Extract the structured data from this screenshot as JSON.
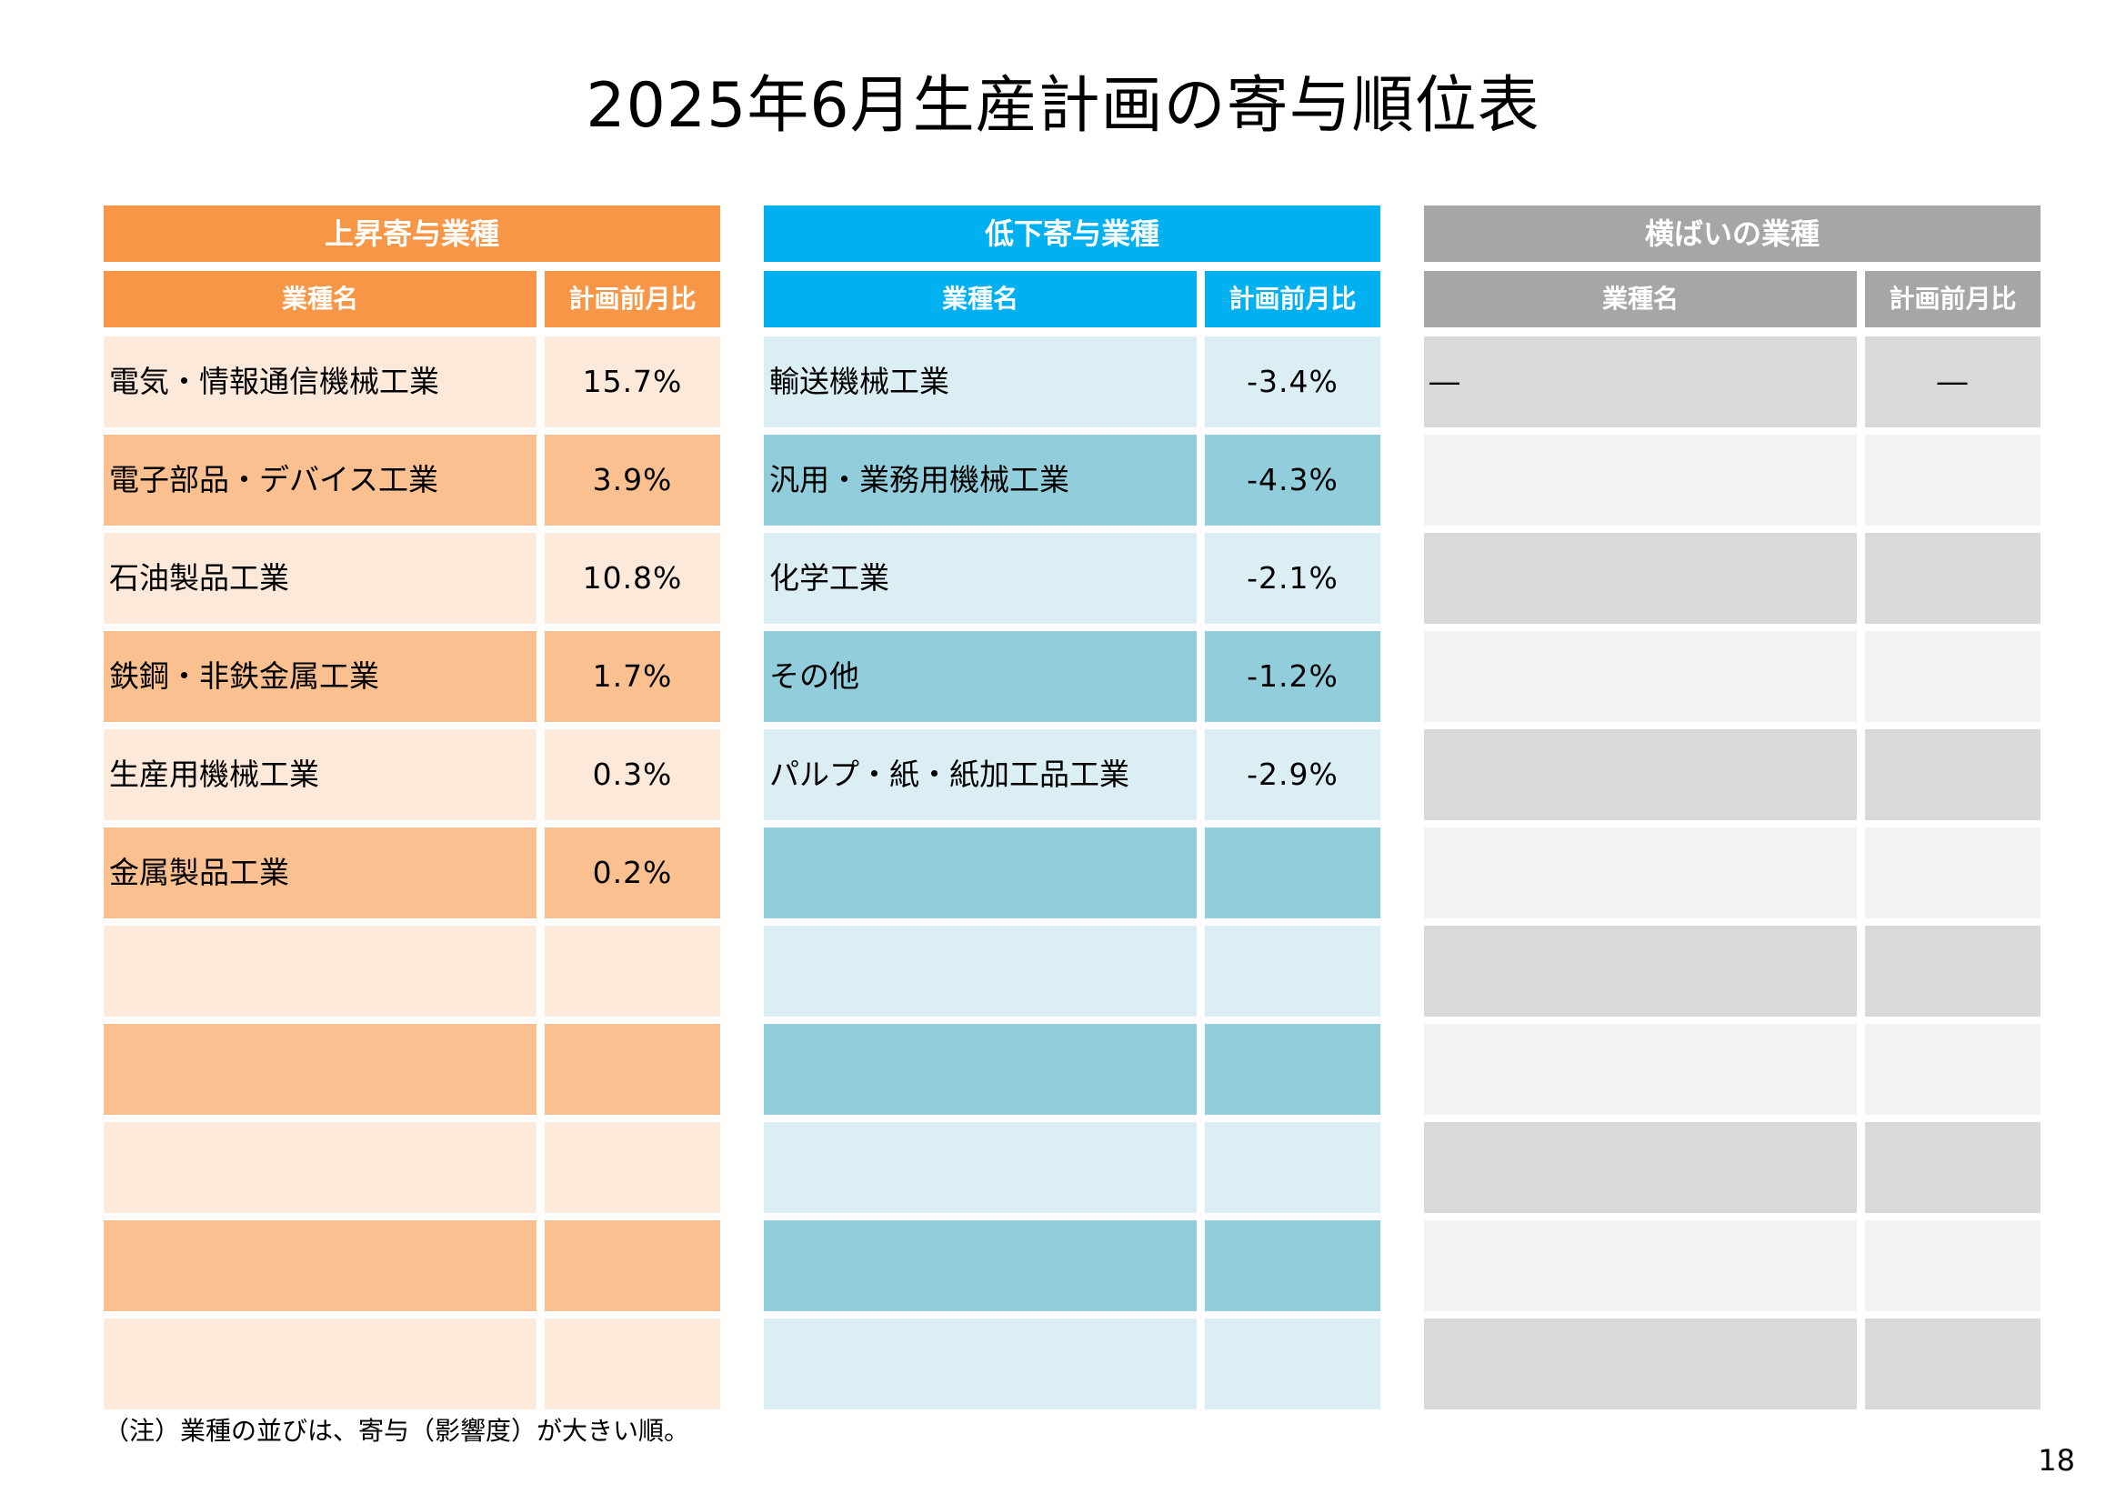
{
  "title": "2025年6月生産計画の寄与順位表",
  "colors": {
    "up_header": "#f79646",
    "up_row_light": "#fde9d9",
    "up_row_dark": "#fac090",
    "down_header": "#00b0f0",
    "down_row_light": "#daeef3",
    "down_row_dark": "#92cddc",
    "flat_header": "#a6a6a6",
    "flat_row_light": "#d9d9d9",
    "flat_row_dark": "#f2f2f2"
  },
  "panels": [
    {
      "header": "上昇寄与業種",
      "col_name": "業種名",
      "col_value": "計画前月比",
      "rows": [
        {
          "name": "電気・情報通信機械工業",
          "value": "15.7%"
        },
        {
          "name": "電子部品・デバイス工業",
          "value": "3.9%"
        },
        {
          "name": "石油製品工業",
          "value": "10.8%"
        },
        {
          "name": "鉄鋼・非鉄金属工業",
          "value": "1.7%"
        },
        {
          "name": "生産用機械工業",
          "value": "0.3%"
        },
        {
          "name": "金属製品工業",
          "value": "0.2%"
        },
        {
          "name": "",
          "value": ""
        },
        {
          "name": "",
          "value": ""
        },
        {
          "name": "",
          "value": ""
        },
        {
          "name": "",
          "value": ""
        },
        {
          "name": "",
          "value": ""
        }
      ]
    },
    {
      "header": "低下寄与業種",
      "col_name": "業種名",
      "col_value": "計画前月比",
      "rows": [
        {
          "name": "輸送機械工業",
          "value": "-3.4%"
        },
        {
          "name": "汎用・業務用機械工業",
          "value": "-4.3%"
        },
        {
          "name": "化学工業",
          "value": "-2.1%"
        },
        {
          "name": "その他",
          "value": "-1.2%"
        },
        {
          "name": "パルプ・紙・紙加工品工業",
          "value": "-2.9%"
        },
        {
          "name": "",
          "value": ""
        },
        {
          "name": "",
          "value": ""
        },
        {
          "name": "",
          "value": ""
        },
        {
          "name": "",
          "value": ""
        },
        {
          "name": "",
          "value": ""
        },
        {
          "name": "",
          "value": ""
        }
      ]
    },
    {
      "header": "横ばいの業種",
      "col_name": "業種名",
      "col_value": "計画前月比",
      "rows": [
        {
          "name": "―",
          "value": "―"
        },
        {
          "name": "",
          "value": ""
        },
        {
          "name": "",
          "value": ""
        },
        {
          "name": "",
          "value": ""
        },
        {
          "name": "",
          "value": ""
        },
        {
          "name": "",
          "value": ""
        },
        {
          "name": "",
          "value": ""
        },
        {
          "name": "",
          "value": ""
        },
        {
          "name": "",
          "value": ""
        },
        {
          "name": "",
          "value": ""
        },
        {
          "name": "",
          "value": ""
        }
      ]
    }
  ],
  "note": "（注）業種の並びは、寄与（影響度）が大きい順。",
  "page_number": "18"
}
